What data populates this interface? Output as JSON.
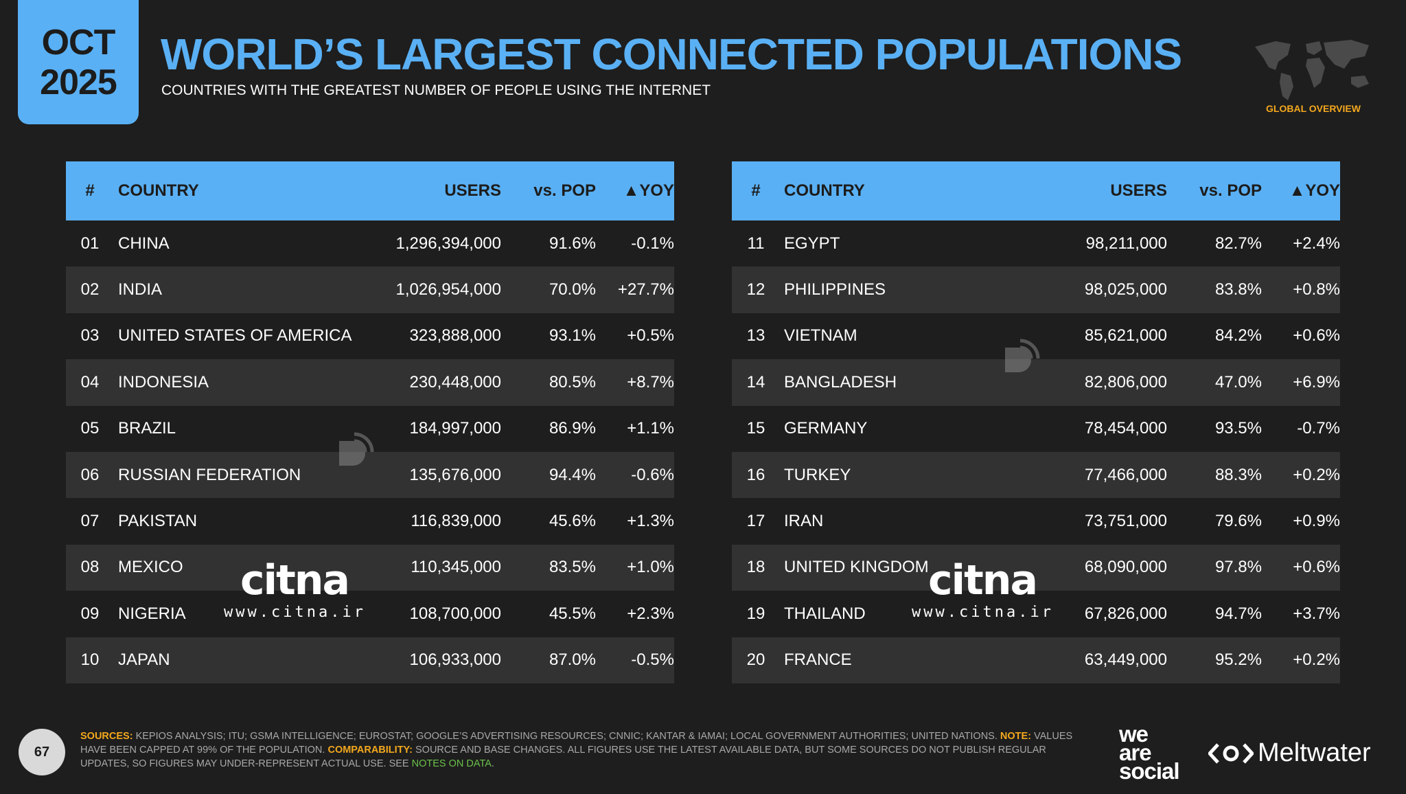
{
  "header": {
    "month": "OCT",
    "year": "2025",
    "title": "WORLD’S LARGEST CONNECTED POPULATIONS",
    "subtitle": "COUNTRIES WITH THE GREATEST NUMBER OF PEOPLE USING THE INTERNET",
    "section": "GLOBAL OVERVIEW"
  },
  "columns": {
    "num": "#",
    "country": "COUNTRY",
    "users": "USERS",
    "pop": "vs. POP",
    "yoy": "▲YOY"
  },
  "left_rows": [
    {
      "num": "01",
      "country": "CHINA",
      "users": "1,296,394,000",
      "pop": "91.6%",
      "yoy": "-0.1%"
    },
    {
      "num": "02",
      "country": "INDIA",
      "users": "1,026,954,000",
      "pop": "70.0%",
      "yoy": "+27.7%"
    },
    {
      "num": "03",
      "country": "UNITED STATES OF AMERICA",
      "users": "323,888,000",
      "pop": "93.1%",
      "yoy": "+0.5%"
    },
    {
      "num": "04",
      "country": "INDONESIA",
      "users": "230,448,000",
      "pop": "80.5%",
      "yoy": "+8.7%"
    },
    {
      "num": "05",
      "country": "BRAZIL",
      "users": "184,997,000",
      "pop": "86.9%",
      "yoy": "+1.1%"
    },
    {
      "num": "06",
      "country": "RUSSIAN FEDERATION",
      "users": "135,676,000",
      "pop": "94.4%",
      "yoy": "-0.6%"
    },
    {
      "num": "07",
      "country": "PAKISTAN",
      "users": "116,839,000",
      "pop": "45.6%",
      "yoy": "+1.3%"
    },
    {
      "num": "08",
      "country": "MEXICO",
      "users": "110,345,000",
      "pop": "83.5%",
      "yoy": "+1.0%"
    },
    {
      "num": "09",
      "country": "NIGERIA",
      "users": "108,700,000",
      "pop": "45.5%",
      "yoy": "+2.3%"
    },
    {
      "num": "10",
      "country": "JAPAN",
      "users": "106,933,000",
      "pop": "87.0%",
      "yoy": "-0.5%"
    }
  ],
  "right_rows": [
    {
      "num": "11",
      "country": "EGYPT",
      "users": "98,211,000",
      "pop": "82.7%",
      "yoy": "+2.4%"
    },
    {
      "num": "12",
      "country": "PHILIPPINES",
      "users": "98,025,000",
      "pop": "83.8%",
      "yoy": "+0.8%"
    },
    {
      "num": "13",
      "country": "VIETNAM",
      "users": "85,621,000",
      "pop": "84.2%",
      "yoy": "+0.6%"
    },
    {
      "num": "14",
      "country": "BANGLADESH",
      "users": "82,806,000",
      "pop": "47.0%",
      "yoy": "+6.9%"
    },
    {
      "num": "15",
      "country": "GERMANY",
      "users": "78,454,000",
      "pop": "93.5%",
      "yoy": "-0.7%"
    },
    {
      "num": "16",
      "country": "TURKEY",
      "users": "77,466,000",
      "pop": "88.3%",
      "yoy": "+0.2%"
    },
    {
      "num": "17",
      "country": "IRAN",
      "users": "73,751,000",
      "pop": "79.6%",
      "yoy": "+0.9%"
    },
    {
      "num": "18",
      "country": "UNITED KINGDOM",
      "users": "68,090,000",
      "pop": "97.8%",
      "yoy": "+0.6%"
    },
    {
      "num": "19",
      "country": "THAILAND",
      "users": "67,826,000",
      "pop": "94.7%",
      "yoy": "+3.7%"
    },
    {
      "num": "20",
      "country": "FRANCE",
      "users": "63,449,000",
      "pop": "95.2%",
      "yoy": "+0.2%"
    }
  ],
  "watermark": {
    "logo": "citna",
    "url": "www.citna.ir"
  },
  "footer": {
    "page": "67",
    "sources_label": "SOURCES:",
    "sources_text": " KEPIOS ANALYSIS; ITU; GSMA INTELLIGENCE; EUROSTAT; GOOGLE’S ADVERTISING RESOURCES; CNNIC; KANTAR & IAMAI; LOCAL GOVERNMENT AUTHORITIES; UNITED NATIONS. ",
    "note_label": "NOTE:",
    "note_text": " VALUES HAVE BEEN CAPPED AT 99% OF THE POPULATION. ",
    "comparability_label": "COMPARABILITY:",
    "comparability_text": " SOURCE AND BASE CHANGES. ALL FIGURES USE THE LATEST AVAILABLE DATA, BUT SOME SOURCES DO NOT PUBLISH REGULAR UPDATES, SO FIGURES MAY UNDER-REPRESENT ACTUAL USE. SEE ",
    "notes_link": "NOTES ON DATA",
    "end": "."
  },
  "brands": {
    "was_1": "we",
    "was_2": "are",
    "was_3": "social",
    "meltwater": "Meltwater"
  },
  "colors": {
    "accent": "#5ab0f4",
    "highlight": "#f4a81d",
    "link": "#6cc24a",
    "row_alt": "#323232"
  }
}
